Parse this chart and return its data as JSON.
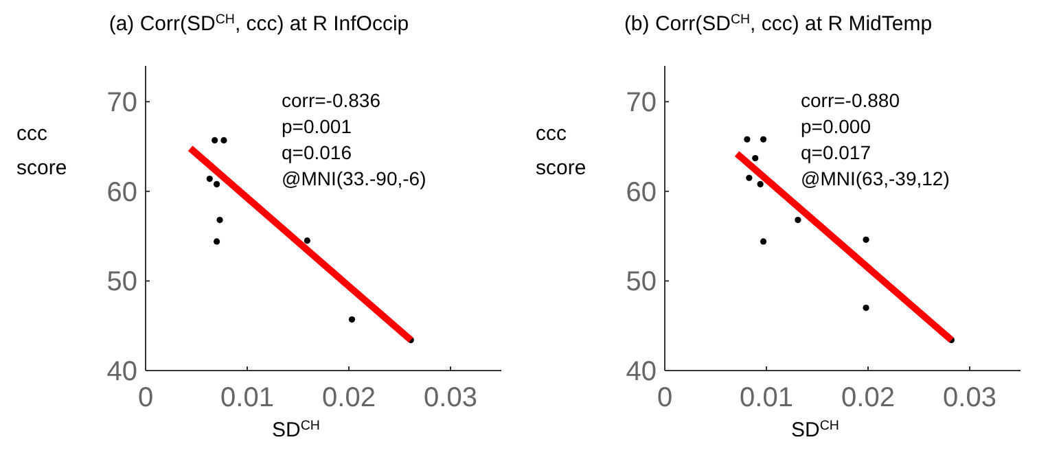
{
  "chart_data": [
    {
      "type": "scatter",
      "title": "(a) Corr(SD$^{CH}$, ccc)  at R InfOccip",
      "xlabel": "SD$^{CH}$",
      "ylabel": "ccc score",
      "xlim": [
        0,
        0.035
      ],
      "ylim": [
        40,
        74
      ],
      "xticks": [
        0,
        0.01,
        0.02,
        0.03
      ],
      "yticks": [
        40,
        50,
        60,
        70
      ],
      "grid": false,
      "annotations": [
        "corr=-0.836",
        "p=0.001",
        "q=0.016",
        "@MNI(33.-90,-6)"
      ],
      "series": [
        {
          "color": "#000000",
          "marker": "circle",
          "x": [
            0.0068,
            0.0077,
            0.0063,
            0.007,
            0.0073,
            0.007,
            0.0159,
            0.0203,
            0.0261
          ],
          "values": [
            65.7,
            65.7,
            61.4,
            60.8,
            56.8,
            54.4,
            54.5,
            45.7,
            43.4
          ]
        },
        {
          "type": "line",
          "color": "#ff0000",
          "x": [
            0.0044,
            0.0261
          ],
          "values": [
            64.8,
            43.4
          ]
        }
      ]
    },
    {
      "type": "scatter",
      "title": "(b) Corr(SD$^{CH}$, ccc) at R MidTemp",
      "xlabel": "SD$^{CH}$",
      "ylabel": "ccc score",
      "xlim": [
        0,
        0.035
      ],
      "ylim": [
        40,
        74
      ],
      "xticks": [
        0,
        0.01,
        0.02,
        0.03
      ],
      "yticks": [
        40,
        50,
        60,
        70
      ],
      "grid": false,
      "annotations": [
        "corr=-0.880",
        "p=0.000",
        "q=0.017",
        "@MNI(63,-39,12)"
      ],
      "series": [
        {
          "color": "#000000",
          "marker": "circle",
          "x": [
            0.0081,
            0.0097,
            0.0089,
            0.0083,
            0.0094,
            0.0131,
            0.0097,
            0.0198,
            0.0198,
            0.0282
          ],
          "values": [
            65.8,
            65.8,
            63.7,
            61.5,
            60.8,
            56.8,
            54.4,
            54.6,
            47.0,
            43.4
          ]
        },
        {
          "type": "line",
          "color": "#ff0000",
          "x": [
            0.0071,
            0.0282
          ],
          "values": [
            64.2,
            43.4
          ]
        }
      ]
    }
  ]
}
